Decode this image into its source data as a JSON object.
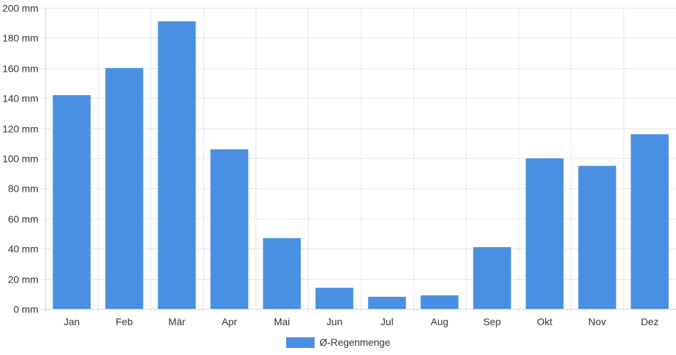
{
  "chart_data": {
    "type": "bar",
    "categories": [
      "Jan",
      "Feb",
      "Mär",
      "Apr",
      "Mai",
      "Jun",
      "Jul",
      "Aug",
      "Sep",
      "Okt",
      "Nov",
      "Dez"
    ],
    "series": [
      {
        "name": "Ø-Regenmenge",
        "values": [
          142,
          160,
          191,
          106,
          47,
          14,
          8,
          9,
          41,
          100,
          95,
          116
        ]
      }
    ],
    "ylim": [
      0,
      200
    ],
    "yticks": [
      "0 mm",
      "20 mm",
      "40 mm",
      "60 mm",
      "80 mm",
      "100 mm",
      "120 mm",
      "140 mm",
      "160 mm",
      "180 mm",
      "200 mm"
    ],
    "ytick_values": [
      0,
      20,
      40,
      60,
      80,
      100,
      120,
      140,
      160,
      180,
      200
    ],
    "grid": true,
    "legend_position": "bottom-center",
    "bar_color": "#4a90e2"
  }
}
